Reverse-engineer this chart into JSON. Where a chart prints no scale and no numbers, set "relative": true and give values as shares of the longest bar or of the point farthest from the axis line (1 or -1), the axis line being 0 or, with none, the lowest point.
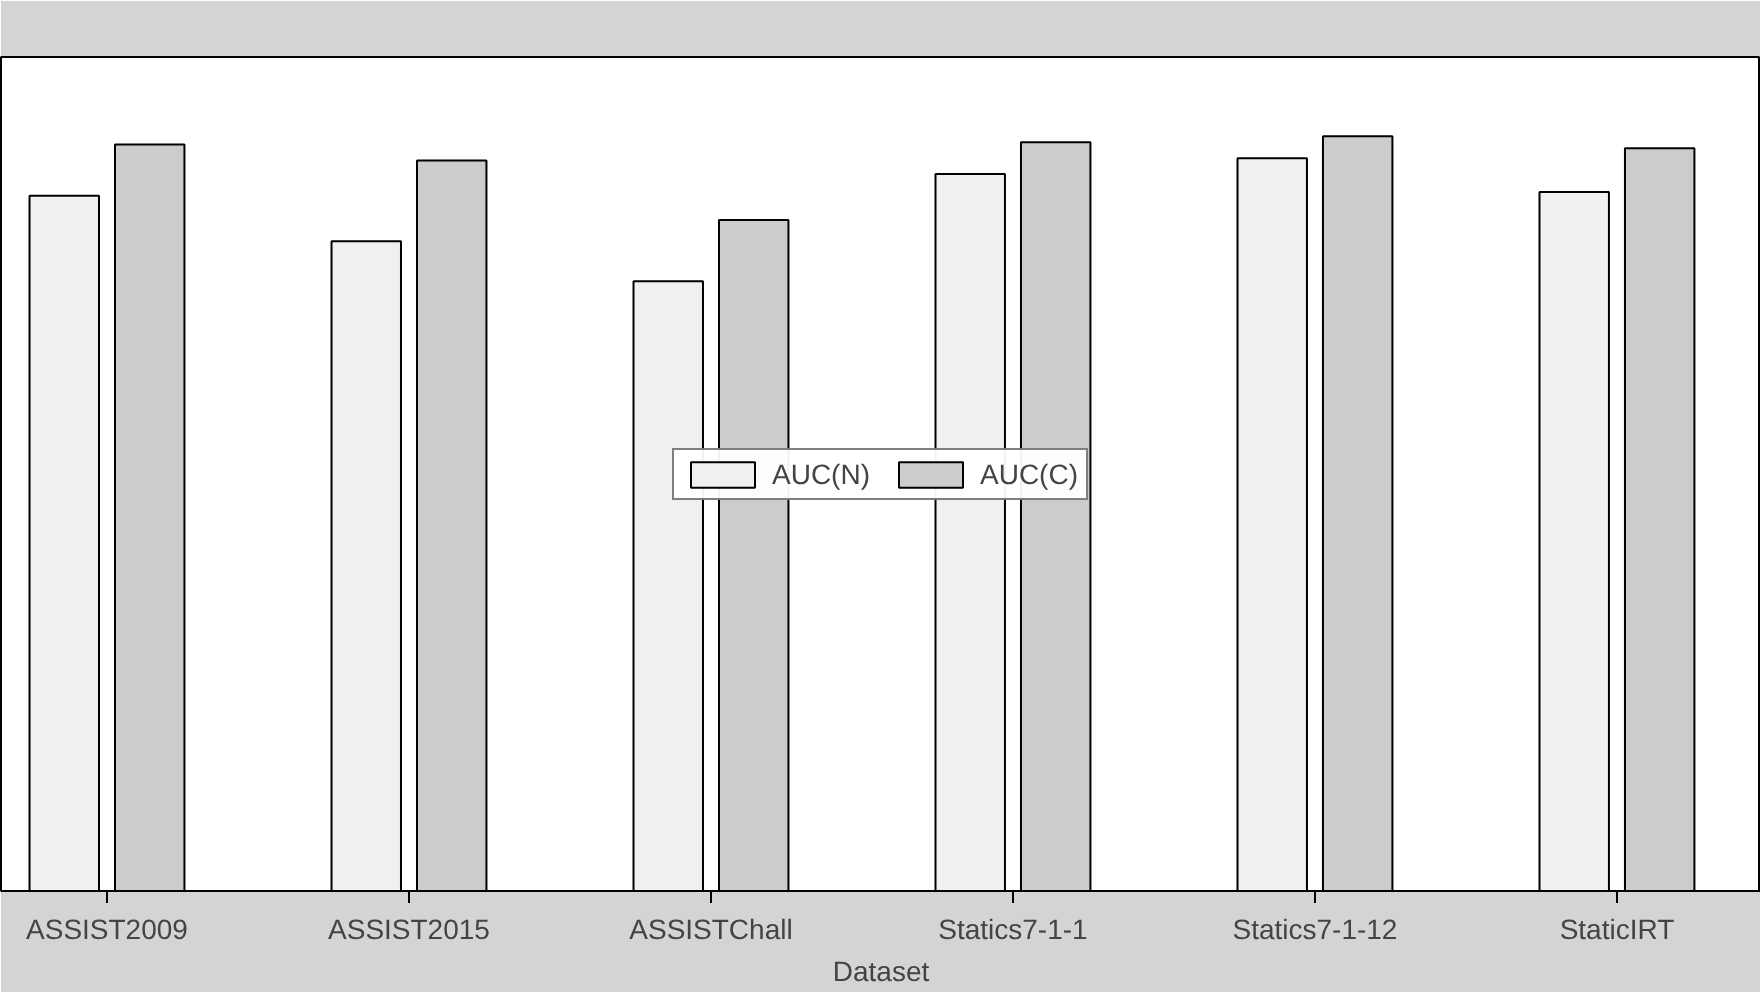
{
  "chart_data": {
    "type": "bar",
    "relative": true,
    "xlabel": "Dataset",
    "categories": [
      "ASSIST2009",
      "ASSIST2015",
      "ASSISTChall",
      "Statics7-1-1",
      "Statics7-1-12",
      "StaticIRT"
    ],
    "series": [
      {
        "name": "AUC(N)",
        "color": "#f0f0f0",
        "values": [
          0.921,
          0.861,
          0.808,
          0.95,
          0.971,
          0.926
        ]
      },
      {
        "name": "AUC(C)",
        "color": "#cccccc",
        "values": [
          0.989,
          0.968,
          0.889,
          0.992,
          1,
          0.984
        ]
      }
    ],
    "legend": "center",
    "grid": false
  }
}
